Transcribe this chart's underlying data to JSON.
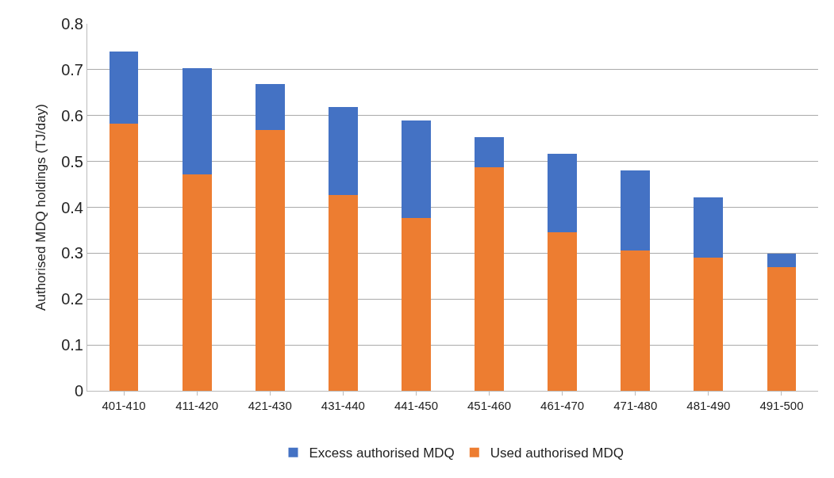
{
  "chart_data": {
    "type": "bar",
    "stacked": true,
    "ylabel": "Authorised MDQ holdings (TJ/day)",
    "categories": [
      "401-410",
      "411-420",
      "421-430",
      "431-440",
      "441-450",
      "451-460",
      "461-470",
      "471-480",
      "481-490",
      "491-500"
    ],
    "series": [
      {
        "name": "Used authorised MDQ",
        "color": "#ed7d31",
        "values": [
          0.583,
          0.472,
          0.568,
          0.427,
          0.377,
          0.488,
          0.345,
          0.305,
          0.291,
          0.27
        ]
      },
      {
        "name": "Excess authorised MDQ",
        "color": "#4472c4",
        "values": [
          0.156,
          0.232,
          0.101,
          0.192,
          0.212,
          0.065,
          0.172,
          0.175,
          0.13,
          0.029
        ]
      }
    ],
    "ylim": [
      0,
      0.8
    ],
    "yticks": [
      {
        "value": 0,
        "label": "0"
      },
      0.1,
      0.2,
      0.3,
      0.4,
      0.5,
      0.6,
      0.7,
      0.8
    ],
    "grid": "y",
    "legend": "bottom"
  }
}
